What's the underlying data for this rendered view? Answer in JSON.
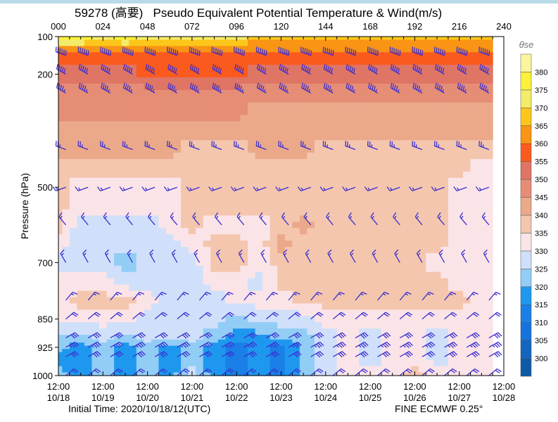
{
  "chart_data": {
    "type": "heatmap",
    "title": "59278 (高要)   Pseudo Equivalent Potential Temperature & Wind(m/s)",
    "ylabel": "Pressure (hPa)",
    "ylim": [
      1000,
      100
    ],
    "xlim": [
      0,
      240
    ],
    "top_ticks": [
      "000",
      "024",
      "048",
      "072",
      "096",
      "120",
      "144",
      "168",
      "192",
      "216",
      "240"
    ],
    "y_ticks": [
      100,
      200,
      500,
      700,
      850,
      925,
      1000
    ],
    "bottom_ticks": [
      {
        "time": "12:00",
        "date": "10/18"
      },
      {
        "time": "12:00",
        "date": "10/19"
      },
      {
        "time": "12:00",
        "date": "10/20"
      },
      {
        "time": "12:00",
        "date": "10/21"
      },
      {
        "time": "12:00",
        "date": "10/22"
      },
      {
        "time": "12:00",
        "date": "10/23"
      },
      {
        "time": "12:00",
        "date": "10/24"
      },
      {
        "time": "12:00",
        "date": "10/25"
      },
      {
        "time": "12:00",
        "date": "10/26"
      },
      {
        "time": "12:00",
        "date": "10/27"
      },
      {
        "time": "12:00",
        "date": "10/28"
      }
    ],
    "initial_time": "Initial Time: 2020/10/18/12(UTC)",
    "model": "FINE ECMWF  0.25°",
    "colorbar": {
      "label": "θse",
      "levels": [
        300,
        305,
        310,
        315,
        320,
        325,
        330,
        335,
        340,
        345,
        350,
        355,
        360,
        365,
        370,
        375,
        380
      ],
      "colors": [
        "#0d5aa7",
        "#1266bf",
        "#1672dc",
        "#1a7fe6",
        "#1e98ef",
        "#92cdf6",
        "#d0e0fa",
        "#fbe4e7",
        "#f4c6ae",
        "#eba98a",
        "#e68d76",
        "#df7564",
        "#fb5a1e",
        "#fa9414",
        "#fcc61a",
        "#f3ec6a",
        "#fdf13a",
        "#fbf59c"
      ]
    },
    "times": [
      0,
      12,
      24,
      36,
      48,
      60,
      72,
      84,
      96,
      108,
      120,
      132,
      144,
      156,
      168,
      180,
      192,
      204,
      216,
      228
    ],
    "levels": [
      100,
      150,
      200,
      250,
      300,
      350,
      400,
      450,
      500,
      550,
      600,
      650,
      700,
      750,
      800,
      850,
      900,
      925,
      950,
      1000
    ],
    "theta_se": [
      [
        377,
        377,
        372,
        377,
        372,
        372,
        372,
        372,
        372,
        367,
        367,
        367,
        367,
        367,
        367,
        367,
        367,
        367,
        367,
        367
      ],
      [
        357,
        357,
        357,
        357,
        357,
        357,
        357,
        357,
        357,
        357,
        357,
        357,
        357,
        357,
        357,
        357,
        357,
        357,
        357,
        357
      ],
      [
        352,
        352,
        352,
        352,
        357,
        357,
        357,
        357,
        357,
        352,
        352,
        352,
        352,
        352,
        352,
        352,
        352,
        352,
        352,
        352
      ],
      [
        347,
        347,
        347,
        347,
        347,
        347,
        347,
        347,
        347,
        347,
        347,
        347,
        347,
        347,
        347,
        347,
        347,
        347,
        347,
        347
      ],
      [
        347,
        347,
        347,
        347,
        347,
        347,
        347,
        347,
        347,
        342,
        342,
        342,
        342,
        342,
        342,
        342,
        342,
        342,
        342,
        342
      ],
      [
        342,
        342,
        342,
        342,
        342,
        342,
        342,
        342,
        342,
        342,
        342,
        342,
        342,
        342,
        342,
        342,
        342,
        342,
        342,
        342
      ],
      [
        342,
        342,
        342,
        342,
        342,
        342,
        337,
        337,
        337,
        342,
        342,
        342,
        337,
        337,
        337,
        337,
        337,
        337,
        337,
        337
      ],
      [
        337,
        337,
        337,
        337,
        337,
        337,
        337,
        337,
        337,
        337,
        337,
        337,
        337,
        337,
        337,
        337,
        337,
        337,
        337,
        332
      ],
      [
        337,
        332,
        332,
        332,
        332,
        332,
        337,
        337,
        337,
        337,
        337,
        337,
        337,
        337,
        337,
        337,
        337,
        337,
        332,
        332
      ],
      [
        337,
        332,
        332,
        332,
        332,
        332,
        337,
        337,
        337,
        337,
        337,
        337,
        337,
        337,
        337,
        337,
        337,
        337,
        332,
        332
      ],
      [
        337,
        327,
        327,
        327,
        327,
        332,
        337,
        332,
        332,
        332,
        337,
        342,
        337,
        337,
        337,
        337,
        337,
        337,
        332,
        332
      ],
      [
        332,
        327,
        327,
        327,
        327,
        327,
        332,
        337,
        337,
        332,
        342,
        337,
        337,
        337,
        337,
        337,
        337,
        337,
        332,
        332
      ],
      [
        327,
        327,
        327,
        322,
        327,
        327,
        327,
        337,
        337,
        332,
        337,
        337,
        337,
        337,
        337,
        337,
        337,
        332,
        332,
        332
      ],
      [
        332,
        332,
        332,
        327,
        327,
        327,
        327,
        332,
        332,
        327,
        337,
        337,
        337,
        337,
        337,
        337,
        337,
        337,
        332,
        332
      ],
      [
        332,
        337,
        337,
        337,
        332,
        327,
        327,
        327,
        332,
        332,
        332,
        337,
        337,
        337,
        337,
        337,
        337,
        337,
        337,
        332
      ],
      [
        332,
        332,
        332,
        332,
        327,
        327,
        327,
        327,
        322,
        327,
        327,
        327,
        332,
        332,
        332,
        332,
        332,
        332,
        332,
        332
      ],
      [
        322,
        322,
        327,
        322,
        327,
        327,
        327,
        322,
        317,
        317,
        322,
        322,
        327,
        332,
        327,
        332,
        332,
        327,
        332,
        332
      ],
      [
        322,
        317,
        322,
        317,
        322,
        317,
        322,
        317,
        312,
        317,
        312,
        322,
        327,
        332,
        327,
        332,
        332,
        327,
        332,
        332
      ],
      [
        317,
        317,
        322,
        317,
        322,
        317,
        322,
        317,
        312,
        317,
        312,
        322,
        327,
        332,
        327,
        332,
        332,
        327,
        332,
        332
      ],
      [
        322,
        317,
        322,
        317,
        322,
        317,
        327,
        317,
        312,
        317,
        312,
        322,
        327,
        332,
        332,
        332,
        337,
        332,
        332,
        332
      ]
    ],
    "wind": {
      "times": [
        4,
        16,
        28,
        40,
        52,
        64,
        76,
        88,
        100,
        112,
        124,
        136,
        148,
        160,
        172,
        184,
        196,
        208,
        220,
        232
      ],
      "levels": [
        {
          "p": 150,
          "dir": 290,
          "speed": 24
        },
        {
          "p": 200,
          "dir": 300,
          "speed": 20
        },
        {
          "p": 250,
          "dir": 300,
          "speed": 18
        },
        {
          "p": 400,
          "dir": 290,
          "speed": 10
        },
        {
          "p": 500,
          "dir": 250,
          "speed": 6
        },
        {
          "p": 600,
          "dir": 320,
          "speed": 6
        },
        {
          "p": 700,
          "dir": 330,
          "speed": 6
        },
        {
          "p": 800,
          "dir": 40,
          "speed": 6
        },
        {
          "p": 850,
          "dir": 50,
          "speed": 8
        },
        {
          "p": 900,
          "dir": 60,
          "speed": 12
        },
        {
          "p": 925,
          "dir": 60,
          "speed": 14
        },
        {
          "p": 950,
          "dir": 60,
          "speed": 12
        },
        {
          "p": 1000,
          "dir": 50,
          "speed": 8
        }
      ],
      "color": "#3a2fd0"
    }
  }
}
